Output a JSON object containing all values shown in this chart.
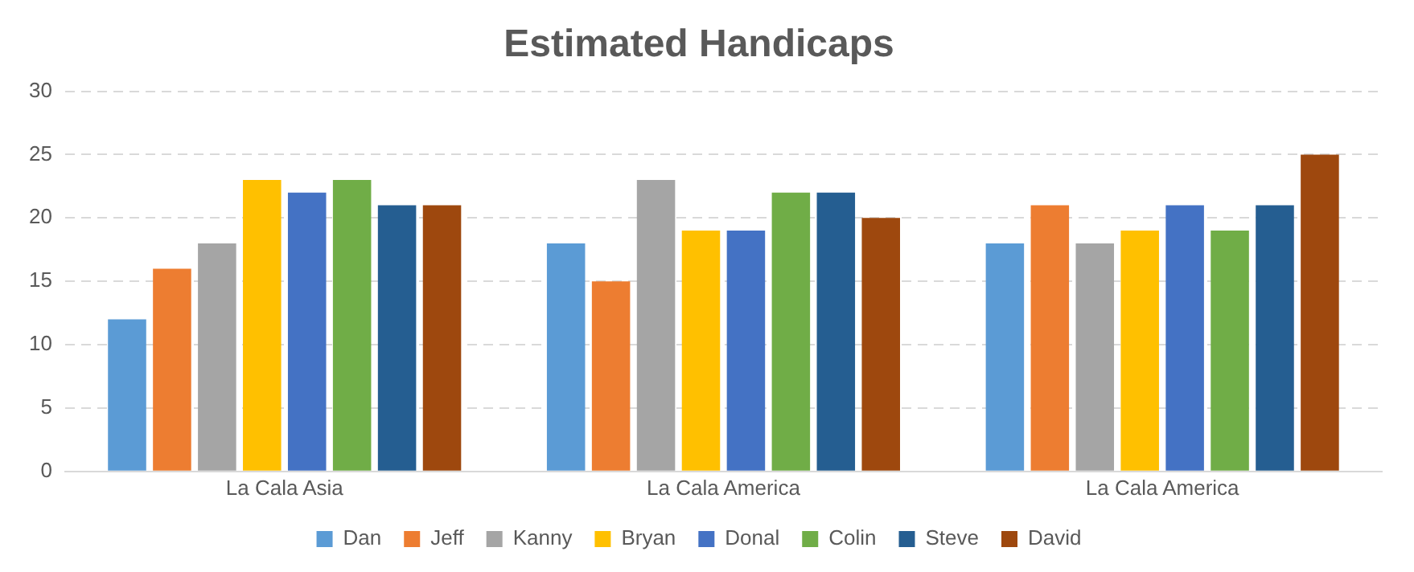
{
  "chart_data": {
    "type": "bar",
    "title": "Estimated Handicaps",
    "categories": [
      "La Cala Asia",
      "La Cala America",
      "La Cala America"
    ],
    "series": [
      {
        "name": "Dan",
        "color": "#5b9bd5",
        "values": [
          12,
          18,
          18
        ]
      },
      {
        "name": "Jeff",
        "color": "#ed7d31",
        "values": [
          16,
          15,
          21
        ]
      },
      {
        "name": "Kanny",
        "color": "#a5a5a5",
        "values": [
          18,
          23,
          18
        ]
      },
      {
        "name": "Bryan",
        "color": "#ffc000",
        "values": [
          23,
          19,
          19
        ]
      },
      {
        "name": "Donal",
        "color": "#4472c4",
        "values": [
          22,
          19,
          21
        ]
      },
      {
        "name": "Colin",
        "color": "#70ad47",
        "values": [
          23,
          22,
          19
        ]
      },
      {
        "name": "Steve",
        "color": "#255e91",
        "values": [
          21,
          22,
          21
        ]
      },
      {
        "name": "David",
        "color": "#9e480e",
        "values": [
          21,
          20,
          25
        ]
      }
    ],
    "ylim": [
      0,
      30
    ],
    "yticks": [
      0,
      5,
      10,
      15,
      20,
      25,
      30
    ],
    "grid": "y",
    "legend": "bottom"
  }
}
